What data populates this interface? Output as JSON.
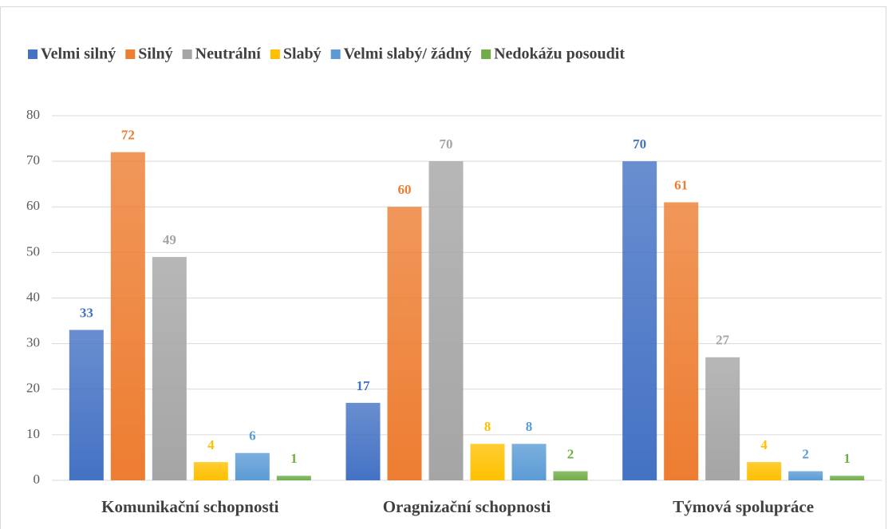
{
  "chart_data": {
    "type": "bar",
    "categories": [
      "Komunikační schopnosti",
      "Oragnizační schopnosti",
      "Týmová spolupráce"
    ],
    "series": [
      {
        "name": "Velmi silný",
        "color": "#4472c4",
        "values": [
          33,
          17,
          70
        ]
      },
      {
        "name": "Silný",
        "color": "#ed7d31",
        "values": [
          72,
          60,
          61
        ]
      },
      {
        "name": "Neutrální",
        "color": "#a5a5a5",
        "values": [
          49,
          70,
          27
        ]
      },
      {
        "name": "Slabý",
        "color": "#ffc000",
        "values": [
          4,
          8,
          4
        ]
      },
      {
        "name": "Velmi slabý/ žádný",
        "color": "#5b9bd5",
        "values": [
          6,
          8,
          2
        ]
      },
      {
        "name": "Nedokážu posoudit",
        "color": "#70ad47",
        "values": [
          1,
          2,
          1
        ]
      }
    ],
    "ylim": [
      0,
      80
    ],
    "yticks": [
      0,
      10,
      20,
      30,
      40,
      50,
      60,
      70,
      80
    ],
    "grid": true,
    "legend": "top"
  }
}
